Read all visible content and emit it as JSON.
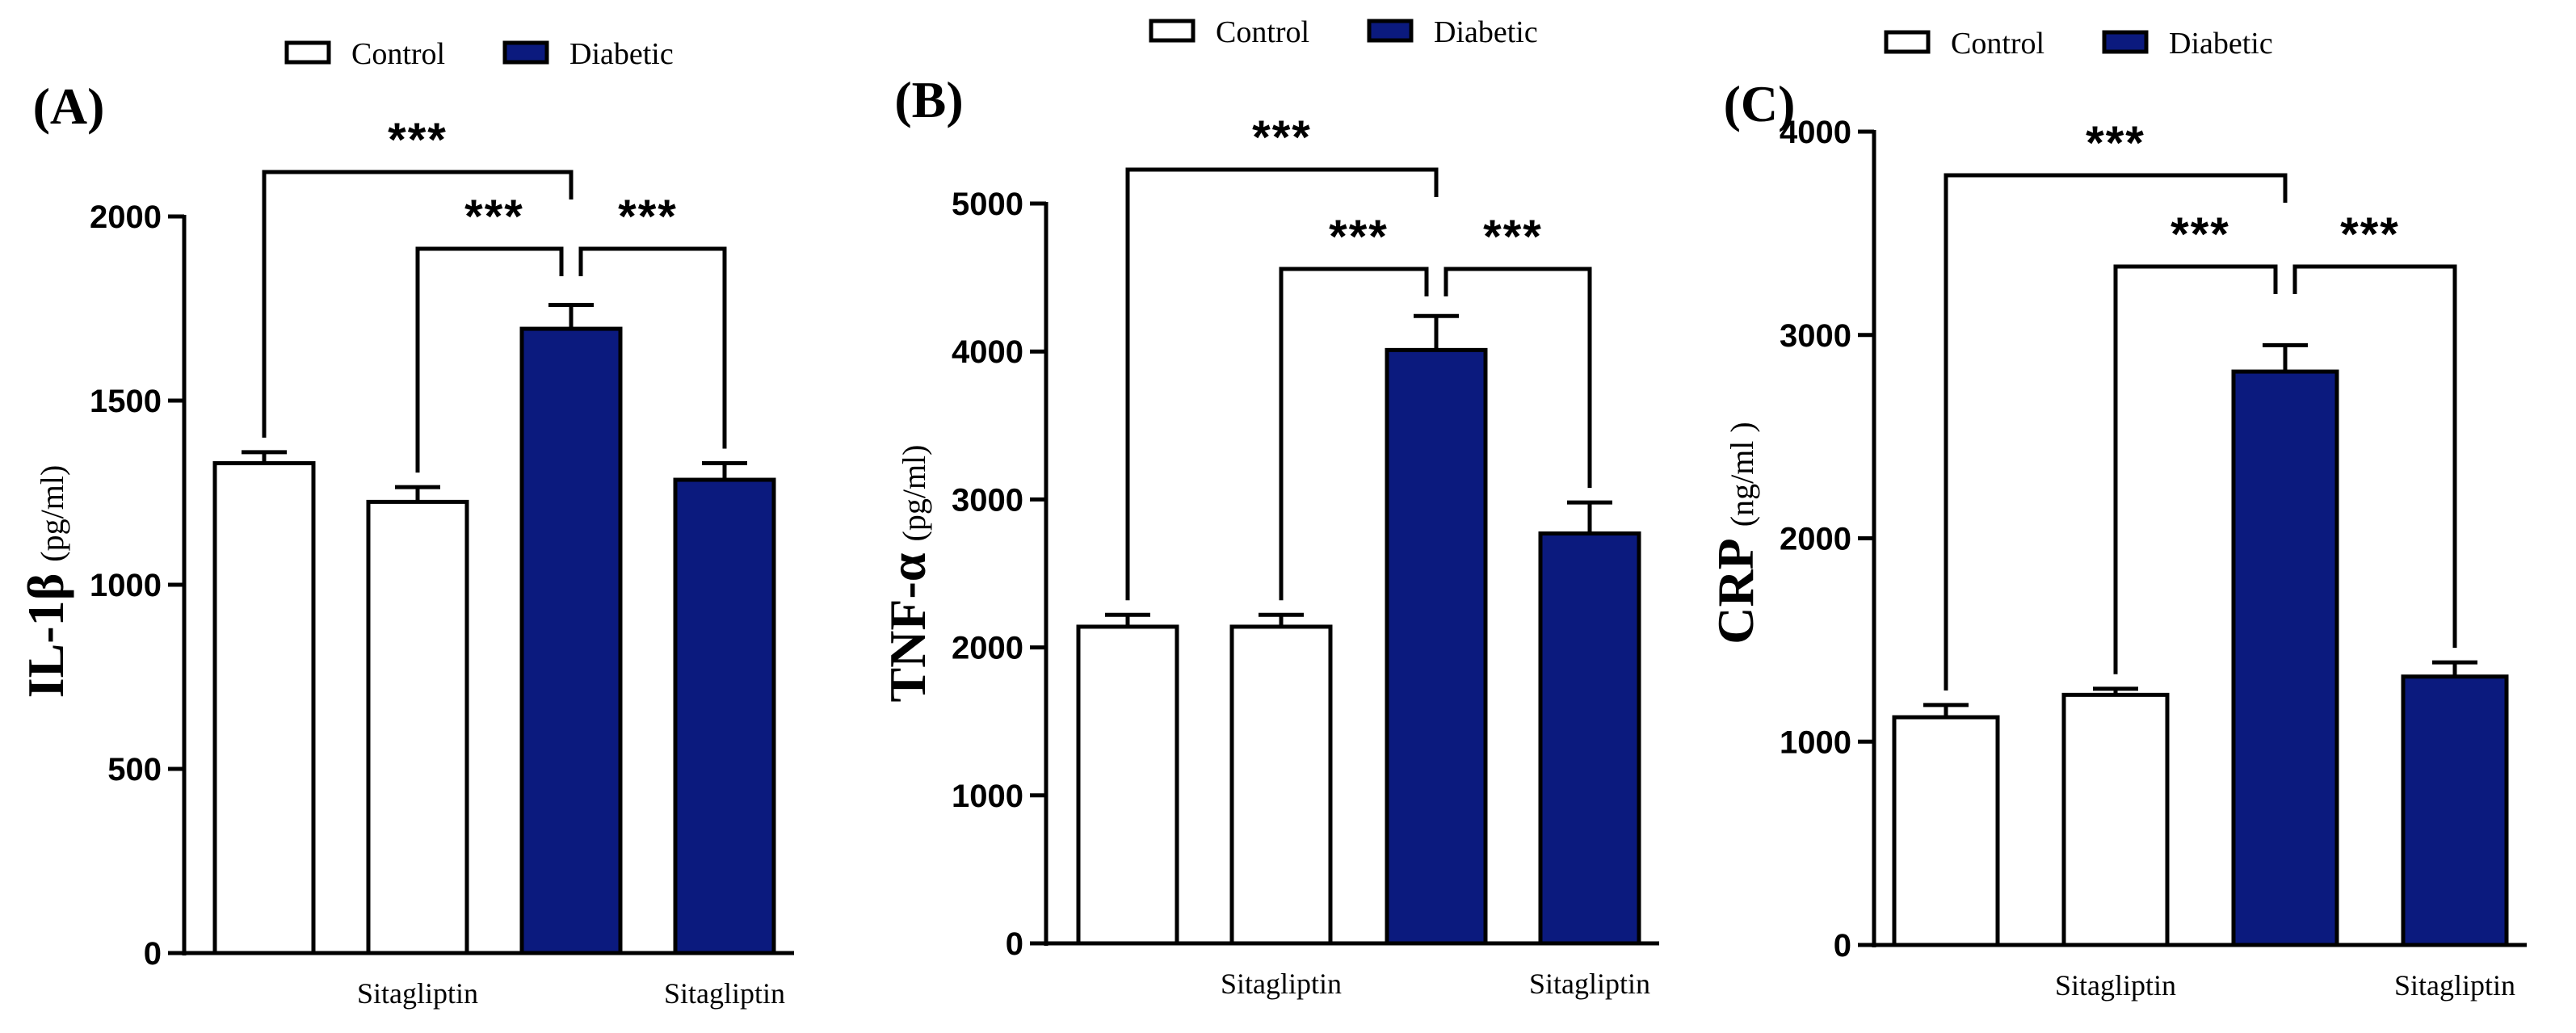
{
  "colors": {
    "control": "#ffffff",
    "diabetic": "#0b1a7e",
    "stroke": "#000000"
  },
  "chart_data": [
    {
      "type": "bar",
      "panel_label": "(A)",
      "legend": [
        "Control",
        "Diabetic"
      ],
      "y_label_main": "IL-1β",
      "y_label_unit": "(pg/ml)",
      "y_ticks": [
        "0",
        "500",
        "1000",
        "1500",
        "2000"
      ],
      "ylim": [
        0,
        2000
      ],
      "categories": [
        "",
        "Sitagliptin",
        "",
        "Sitagliptin"
      ],
      "groups": [
        "Control",
        "Control",
        "Diabetic",
        "Diabetic"
      ],
      "values": [
        1330,
        1225,
        1695,
        1285
      ],
      "errors": [
        30,
        40,
        65,
        45
      ],
      "significance": [
        {
          "from": 0,
          "to": 2,
          "label": "***"
        },
        {
          "from": 1,
          "to": 2,
          "label": "***"
        },
        {
          "from": 2,
          "to": 3,
          "label": "***"
        }
      ]
    },
    {
      "type": "bar",
      "panel_label": "(B)",
      "legend": [
        "Control",
        "Diabetic"
      ],
      "y_label_main": "TNF-α",
      "y_label_unit": "(pg/ml)",
      "y_ticks": [
        "0",
        "1000",
        "2000",
        "3000",
        "4000",
        "5000"
      ],
      "ylim": [
        0,
        5000
      ],
      "categories": [
        "",
        "Sitagliptin",
        "",
        "Sitagliptin"
      ],
      "groups": [
        "Control",
        "Control",
        "Diabetic",
        "Diabetic"
      ],
      "values": [
        2140,
        2140,
        4010,
        2770
      ],
      "errors": [
        80,
        80,
        230,
        210
      ],
      "significance": [
        {
          "from": 0,
          "to": 2,
          "label": "***"
        },
        {
          "from": 1,
          "to": 2,
          "label": "***"
        },
        {
          "from": 2,
          "to": 3,
          "label": "***"
        }
      ]
    },
    {
      "type": "bar",
      "panel_label": "(C)",
      "legend": [
        "Control",
        "Diabetic"
      ],
      "y_label_main": "CRP",
      "y_label_unit": "(ng/ml )",
      "y_ticks": [
        "0",
        "1000",
        "2000",
        "3000",
        "4000"
      ],
      "ylim": [
        0,
        4000
      ],
      "categories": [
        "",
        "Sitagliptin",
        "",
        "Sitagliptin"
      ],
      "groups": [
        "Control",
        "Control",
        "Diabetic",
        "Diabetic"
      ],
      "values": [
        1120,
        1230,
        2820,
        1320
      ],
      "errors": [
        60,
        30,
        130,
        70
      ],
      "significance": [
        {
          "from": 0,
          "to": 2,
          "label": "***"
        },
        {
          "from": 1,
          "to": 2,
          "label": "***"
        },
        {
          "from": 2,
          "to": 3,
          "label": "***"
        }
      ]
    }
  ]
}
